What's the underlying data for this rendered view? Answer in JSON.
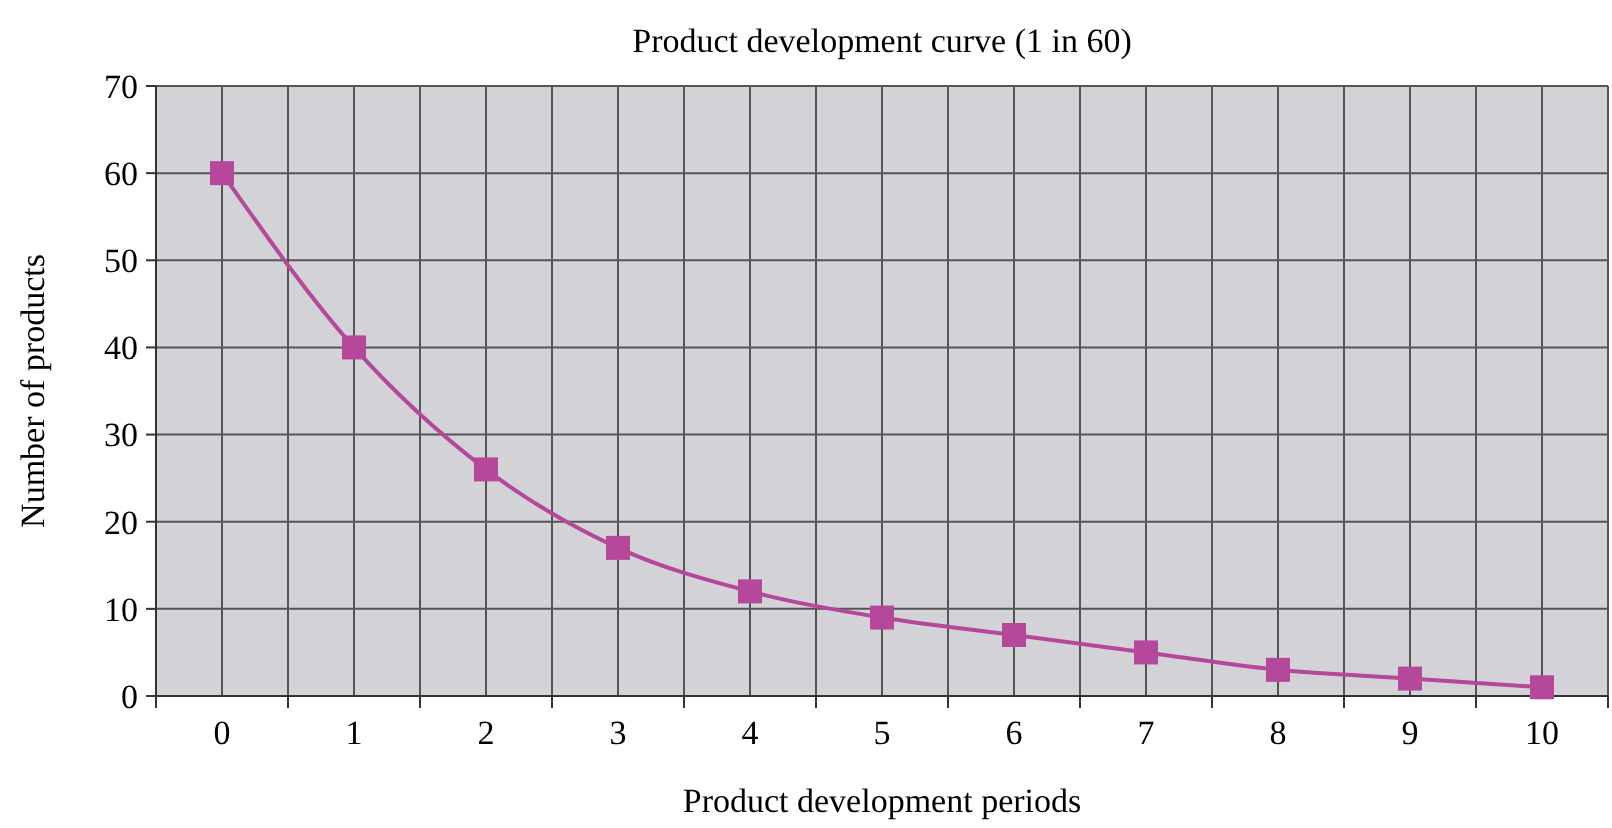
{
  "chart_data": {
    "type": "line",
    "title": "Product development curve (1 in 60)",
    "xlabel": "Product development periods",
    "ylabel": "Number of products",
    "categories": [
      "0",
      "1",
      "2",
      "3",
      "4",
      "5",
      "6",
      "7",
      "8",
      "9",
      "10"
    ],
    "series": [
      {
        "color": "#b5489b",
        "values": [
          60,
          40,
          26,
          17,
          12,
          9,
          7,
          5,
          3,
          2,
          1
        ]
      }
    ],
    "ylim": [
      0,
      70
    ],
    "yticks": [
      0,
      10,
      20,
      30,
      40,
      50,
      60,
      70
    ],
    "grid": true,
    "marker": "square",
    "line_style": "solid"
  }
}
